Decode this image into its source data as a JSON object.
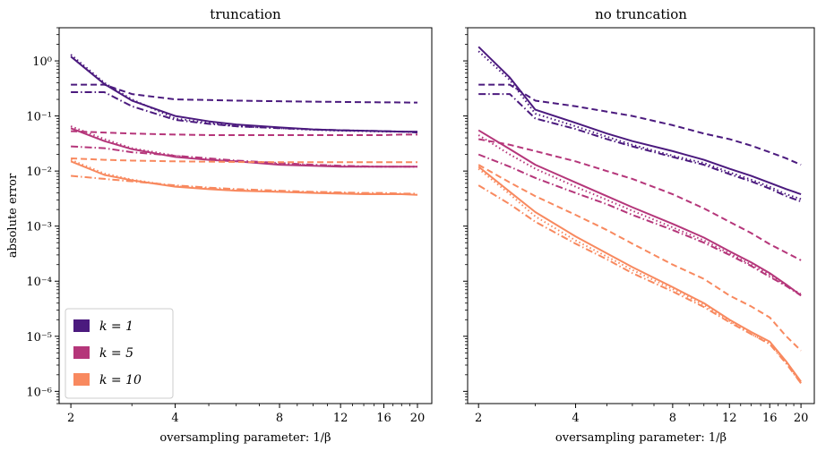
{
  "chart_data": [
    {
      "type": "line",
      "title": "truncation",
      "xlabel": "oversampling parameter: 1/β",
      "ylabel": "absolute error",
      "xscale": "log",
      "yscale": "log",
      "xlim": [
        1.85,
        22
      ],
      "ylim": [
        6e-07,
        4
      ],
      "xticks": [
        2,
        4,
        8,
        12,
        16,
        20
      ],
      "xtick_labels": [
        "2",
        "4",
        "8",
        "12",
        "16",
        "20"
      ],
      "yticks": [
        1e-06,
        1e-05,
        0.0001,
        0.001,
        0.01,
        0.1,
        1
      ],
      "ytick_labels": [
        "10⁻⁶",
        "10⁻⁵",
        "10⁻⁴",
        "10⁻³",
        "10⁻²",
        "10⁻¹",
        "10⁰"
      ],
      "grid": false,
      "legend": {
        "placement": "lower-left",
        "entries": [
          {
            "label": "k = 1",
            "color": "#4b1a7e"
          },
          {
            "label": "k = 5",
            "color": "#b5367a"
          },
          {
            "label": "k = 10",
            "color": "#f8895f"
          }
        ]
      },
      "x": [
        2,
        2.5,
        3,
        4,
        5,
        6,
        8,
        10,
        12,
        14,
        16,
        18,
        20
      ],
      "series": [
        {
          "group": "k = 1",
          "color": "#4b1a7e",
          "style": "solid",
          "values": [
            1.2,
            0.38,
            0.19,
            0.1,
            0.08,
            0.07,
            0.062,
            0.057,
            0.055,
            0.054,
            0.053,
            0.052,
            0.052
          ]
        },
        {
          "group": "k = 1",
          "color": "#4b1a7e",
          "style": "dotted",
          "values": [
            1.3,
            0.4,
            0.2,
            0.09,
            0.075,
            0.065,
            0.06,
            0.056,
            0.054,
            0.053,
            0.052,
            0.052,
            0.051
          ]
        },
        {
          "group": "k = 1",
          "color": "#4b1a7e",
          "style": "dashed",
          "values": [
            0.37,
            0.37,
            0.25,
            0.2,
            0.195,
            0.19,
            0.185,
            0.182,
            0.18,
            0.178,
            0.177,
            0.176,
            0.175
          ]
        },
        {
          "group": "k = 1",
          "color": "#4b1a7e",
          "style": "dashdot",
          "values": [
            0.27,
            0.27,
            0.15,
            0.085,
            0.072,
            0.065,
            0.06,
            0.057,
            0.055,
            0.054,
            0.053,
            0.052,
            0.05
          ]
        },
        {
          "group": "k = 5",
          "color": "#b5367a",
          "style": "solid",
          "values": [
            0.06,
            0.035,
            0.025,
            0.018,
            0.016,
            0.015,
            0.013,
            0.0125,
            0.012,
            0.012,
            0.012,
            0.012,
            0.012
          ]
        },
        {
          "group": "k = 5",
          "color": "#b5367a",
          "style": "dotted",
          "values": [
            0.065,
            0.038,
            0.026,
            0.019,
            0.016,
            0.015,
            0.0135,
            0.0128,
            0.0123,
            0.012,
            0.012,
            0.012,
            0.012
          ]
        },
        {
          "group": "k = 5",
          "color": "#b5367a",
          "style": "dashed",
          "values": [
            0.053,
            0.05,
            0.048,
            0.046,
            0.045,
            0.045,
            0.045,
            0.045,
            0.045,
            0.045,
            0.045,
            0.046,
            0.046
          ]
        },
        {
          "group": "k = 5",
          "color": "#b5367a",
          "style": "dashdot",
          "values": [
            0.028,
            0.026,
            0.022,
            0.019,
            0.017,
            0.0155,
            0.014,
            0.013,
            0.0125,
            0.0122,
            0.012,
            0.012,
            0.012
          ]
        },
        {
          "group": "k = 10",
          "color": "#f8895f",
          "style": "solid",
          "values": [
            0.015,
            0.0085,
            0.0068,
            0.0052,
            0.0047,
            0.0044,
            0.0042,
            0.004,
            0.0039,
            0.0038,
            0.0038,
            0.0038,
            0.0037
          ]
        },
        {
          "group": "k = 10",
          "color": "#f8895f",
          "style": "dotted",
          "values": [
            0.016,
            0.009,
            0.007,
            0.0053,
            0.0048,
            0.0045,
            0.0042,
            0.0041,
            0.004,
            0.0039,
            0.0039,
            0.0038,
            0.0038
          ]
        },
        {
          "group": "k = 10",
          "color": "#f8895f",
          "style": "dashed",
          "values": [
            0.017,
            0.016,
            0.0155,
            0.015,
            0.0148,
            0.0146,
            0.0145,
            0.0145,
            0.0145,
            0.0145,
            0.0145,
            0.0145,
            0.0145
          ]
        },
        {
          "group": "k = 10",
          "color": "#f8895f",
          "style": "dashdot",
          "values": [
            0.0082,
            0.0072,
            0.0065,
            0.0055,
            0.005,
            0.0047,
            0.0044,
            0.0042,
            0.0041,
            0.004,
            0.004,
            0.0039,
            0.0039
          ]
        }
      ]
    },
    {
      "type": "line",
      "title": "no truncation",
      "xlabel": "oversampling parameter: 1/β",
      "ylabel": "",
      "xscale": "log",
      "yscale": "log",
      "xlim": [
        1.85,
        22
      ],
      "ylim": [
        6e-07,
        4
      ],
      "xticks": [
        2,
        4,
        8,
        12,
        16,
        20
      ],
      "xtick_labels": [
        "2",
        "4",
        "8",
        "12",
        "16",
        "20"
      ],
      "yticks": [
        1e-06,
        1e-05,
        0.0001,
        0.001,
        0.01,
        0.1,
        1
      ],
      "grid": false,
      "x": [
        2,
        2.5,
        3,
        4,
        5,
        6,
        8,
        10,
        12,
        14,
        16,
        18,
        20
      ],
      "series": [
        {
          "group": "k = 1",
          "color": "#4b1a7e",
          "style": "solid",
          "values": [
            1.8,
            0.5,
            0.13,
            0.075,
            0.048,
            0.035,
            0.023,
            0.016,
            0.011,
            0.0082,
            0.0061,
            0.0047,
            0.0038
          ]
        },
        {
          "group": "k = 1",
          "color": "#4b1a7e",
          "style": "dotted",
          "values": [
            1.5,
            0.45,
            0.11,
            0.065,
            0.042,
            0.03,
            0.019,
            0.014,
            0.0095,
            0.007,
            0.0052,
            0.0038,
            0.0031
          ]
        },
        {
          "group": "k = 1",
          "color": "#4b1a7e",
          "style": "dashed",
          "values": [
            0.37,
            0.37,
            0.19,
            0.15,
            0.12,
            0.1,
            0.068,
            0.048,
            0.038,
            0.029,
            0.022,
            0.017,
            0.013
          ]
        },
        {
          "group": "k = 1",
          "color": "#4b1a7e",
          "style": "dashdot",
          "values": [
            0.25,
            0.25,
            0.09,
            0.058,
            0.038,
            0.028,
            0.018,
            0.013,
            0.0088,
            0.0065,
            0.0048,
            0.0035,
            0.0028
          ]
        },
        {
          "group": "k = 5",
          "color": "#b5367a",
          "style": "solid",
          "values": [
            0.055,
            0.025,
            0.013,
            0.0062,
            0.0035,
            0.0022,
            0.0011,
            0.00062,
            0.00035,
            0.00022,
            0.00014,
            8.7e-05,
            5.5e-05
          ]
        },
        {
          "group": "k = 5",
          "color": "#b5367a",
          "style": "dotted",
          "values": [
            0.045,
            0.02,
            0.011,
            0.0052,
            0.003,
            0.0019,
            0.00095,
            0.00055,
            0.00032,
            0.0002,
            0.00013,
            8.3e-05,
            5.8e-05
          ]
        },
        {
          "group": "k = 5",
          "color": "#b5367a",
          "style": "dashed",
          "values": [
            0.038,
            0.03,
            0.023,
            0.015,
            0.01,
            0.0072,
            0.0038,
            0.0021,
            0.0012,
            0.00075,
            0.00047,
            0.00033,
            0.00024
          ]
        },
        {
          "group": "k = 5",
          "color": "#b5367a",
          "style": "dashdot",
          "values": [
            0.02,
            0.012,
            0.0075,
            0.004,
            0.0025,
            0.0016,
            0.00085,
            0.0005,
            0.0003,
            0.00019,
            0.00012,
            8.2e-05,
            5.5e-05
          ]
        },
        {
          "group": "k = 10",
          "color": "#f8895f",
          "style": "solid",
          "values": [
            0.012,
            0.0042,
            0.0018,
            0.00065,
            0.00032,
            0.00018,
            7.8e-05,
            4e-05,
            2e-05,
            1.2e-05,
            8e-06,
            3.5e-06,
            1.5e-06
          ]
        },
        {
          "group": "k = 10",
          "color": "#f8895f",
          "style": "dotted",
          "values": [
            0.011,
            0.0038,
            0.0015,
            0.00055,
            0.00028,
            0.00016,
            7.2e-05,
            3.7e-05,
            1.9e-05,
            1.1e-05,
            7.5e-06,
            3.3e-06,
            1.4e-06
          ]
        },
        {
          "group": "k = 10",
          "color": "#f8895f",
          "style": "dashed",
          "values": [
            0.013,
            0.0062,
            0.0035,
            0.0016,
            0.00085,
            0.00048,
            0.0002,
            0.00011,
            5.5e-05,
            3.5e-05,
            2.2e-05,
            1e-05,
            5.5e-06
          ]
        },
        {
          "group": "k = 10",
          "color": "#f8895f",
          "style": "dashdot",
          "values": [
            0.0055,
            0.0025,
            0.0012,
            0.00048,
            0.00025,
            0.00014,
            6.5e-05,
            3.4e-05,
            1.8e-05,
            1.1e-05,
            7.2e-06,
            3.2e-06,
            1.4e-06
          ]
        }
      ]
    }
  ]
}
